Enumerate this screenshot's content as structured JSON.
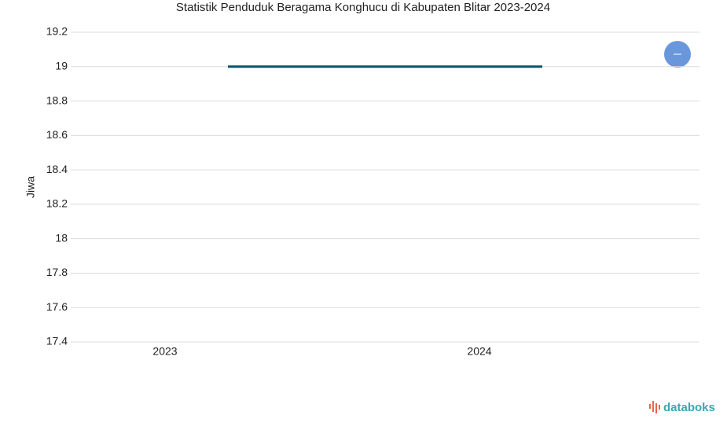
{
  "chart_data": {
    "type": "line",
    "title": "Statistik Penduduk Beragama Konghucu di Kabupaten Blitar 2023-2024",
    "y_label": "Jiwa",
    "categories": [
      "2023",
      "2024"
    ],
    "series": [
      {
        "color": "#0b5468",
        "values": [
          19,
          19
        ]
      }
    ],
    "ylim": [
      17.4,
      19.2
    ],
    "yticks": [
      17.4,
      17.6,
      17.8,
      18,
      18.2,
      18.4,
      18.6,
      18.8,
      19,
      19.2
    ],
    "grid": true,
    "brand": "databoks"
  }
}
